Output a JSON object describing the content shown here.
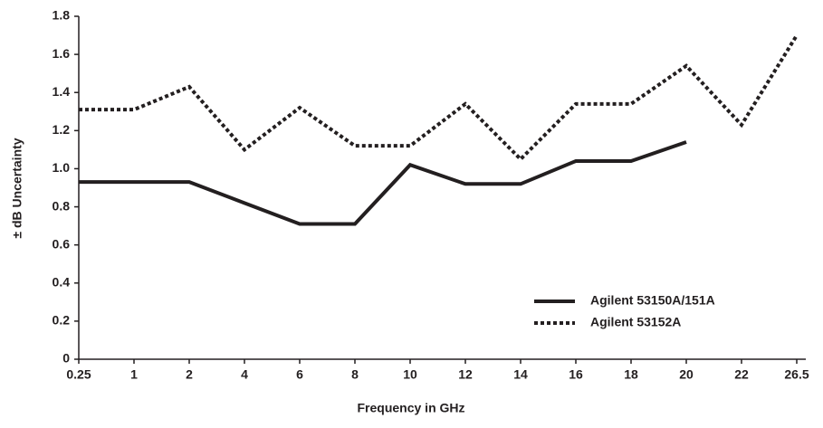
{
  "chart_data": {
    "type": "line",
    "x_label": "Frequency in GHz",
    "y_label": "± dB Uncertainty",
    "categories": [
      "0.25",
      "1",
      "2",
      "4",
      "6",
      "8",
      "10",
      "12",
      "14",
      "16",
      "18",
      "20",
      "22",
      "26.5"
    ],
    "series": [
      {
        "name": "Agilent 53150A/151A",
        "color": "#231f20",
        "style": "solid",
        "values": [
          0.93,
          0.93,
          0.93,
          0.82,
          0.71,
          0.71,
          1.02,
          0.92,
          0.92,
          1.04,
          1.04,
          1.14,
          null,
          null
        ]
      },
      {
        "name": "Agilent 53152A",
        "color": "#231f20",
        "style": "dotted",
        "values": [
          1.31,
          1.31,
          1.43,
          1.1,
          1.32,
          1.12,
          1.12,
          1.34,
          1.05,
          1.34,
          1.34,
          1.54,
          1.23,
          1.7
        ]
      }
    ],
    "ylim": [
      0,
      1.8
    ],
    "yticks": [
      0,
      0.2,
      0.4,
      0.6,
      0.8,
      {
        "value": 1,
        "label": "1.0"
      },
      1.2,
      1.4,
      1.6,
      1.8
    ],
    "legend": "lower-right"
  }
}
